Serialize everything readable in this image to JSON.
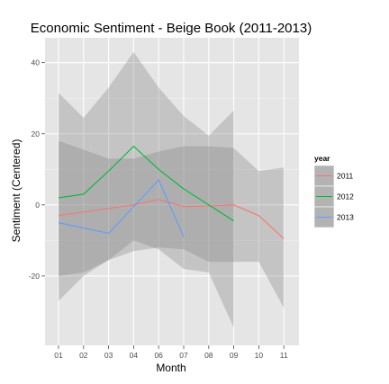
{
  "chart_data": {
    "type": "line",
    "title": "Economic Sentiment - Beige Book (2011-2013)",
    "xlabel": "Month",
    "ylabel": "Sentiment (Centered)",
    "categories": [
      "01",
      "02",
      "03",
      "04",
      "06",
      "07",
      "08",
      "09",
      "10",
      "11"
    ],
    "y_ticks": [
      -20,
      0,
      20,
      40
    ],
    "ylim": [
      -39.5,
      47
    ],
    "grid": true,
    "legend_title": "year",
    "legend_position": "right",
    "series": [
      {
        "name": "2011",
        "color": "#F8766D",
        "values": [
          -3,
          -2,
          -1,
          0,
          1.5,
          -0.5,
          -0.3,
          0,
          -3,
          -9.5
        ],
        "ribbon_inner": [
          [
            -20,
            18
          ],
          [
            -19,
            15.5
          ],
          [
            -15.5,
            13
          ],
          [
            -13,
            13
          ],
          [
            -12,
            15
          ],
          [
            -12.5,
            16.5
          ],
          [
            -16,
            16.5
          ],
          [
            -16,
            16
          ],
          [
            -16,
            9.5
          ],
          [
            -29,
            10.5
          ]
        ],
        "ribbon_outer": [
          [
            -27,
            31.5
          ],
          [
            -20,
            24.5
          ],
          [
            -15.5,
            33
          ],
          [
            -10,
            43
          ],
          [
            -12.5,
            33
          ],
          [
            -18,
            25
          ],
          [
            -19,
            19.5
          ],
          [
            -34.5,
            26.5
          ],
          null,
          null
        ]
      },
      {
        "name": "2012",
        "color": "#00BA38",
        "values": [
          2,
          3,
          9.5,
          16.5,
          10,
          4.5,
          0,
          -4.5,
          null,
          null
        ]
      },
      {
        "name": "2013",
        "color": "#619CFF",
        "values": [
          -5,
          -6.5,
          -8,
          null,
          7,
          -9,
          null,
          null,
          null,
          null
        ]
      }
    ]
  }
}
